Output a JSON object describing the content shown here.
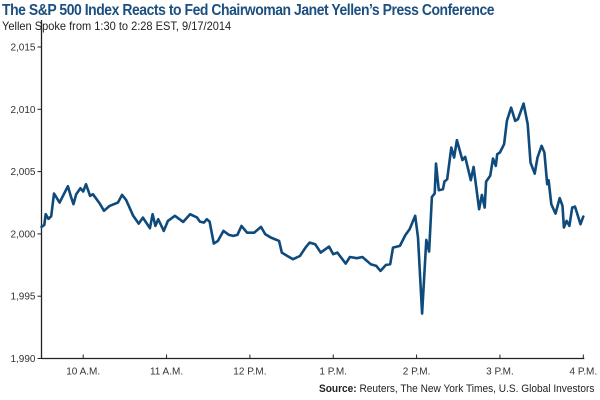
{
  "chart_data": {
    "type": "line",
    "title": "The S&P 500 Index Reacts to Fed Chairwoman Janet Yellen’s Press Conference",
    "subtitle": "Yellen Spoke from 1:30 to 2:28 EST, 9/17/2014",
    "source_label": "Source:",
    "source_text": "Reuters, The New York Times, U.S. Global Investors",
    "xlabel": "",
    "ylabel": "",
    "xlim": [
      "09:30",
      "16:00"
    ],
    "ylim": [
      1990,
      2015
    ],
    "yticks": [
      1990,
      1995,
      2000,
      2005,
      2010,
      2015
    ],
    "ytick_labels": [
      "1,990",
      "1,995",
      "2,000",
      "2,005",
      "2,010",
      "2,015"
    ],
    "xticks": [
      "10:00",
      "11:00",
      "12:00",
      "13:00",
      "14:00",
      "15:00",
      "16:00"
    ],
    "xtick_labels": [
      "10 A.M.",
      "11 A.M.",
      "12 P.M.",
      "1 P.M.",
      "2 P.M.",
      "3 P.M.",
      "4 P.M."
    ],
    "grid": false,
    "line_color": "#0f4a7c",
    "title_color": "#1b4f80",
    "points": [
      [
        "09:30",
        2000.56
      ],
      [
        "09:32",
        2000.72
      ],
      [
        "09:33",
        2001.58
      ],
      [
        "09:35",
        2001.2
      ],
      [
        "09:37",
        2001.42
      ],
      [
        "09:39",
        2003.24
      ],
      [
        "09:43",
        2002.51
      ],
      [
        "09:49",
        2003.83
      ],
      [
        "09:51",
        2003.05
      ],
      [
        "09:53",
        2002.38
      ],
      [
        "09:55",
        2003.19
      ],
      [
        "09:58",
        2003.67
      ],
      [
        "10:00",
        2003.4
      ],
      [
        "10:02",
        2003.99
      ],
      [
        "10:05",
        2003.05
      ],
      [
        "10:07",
        2003.19
      ],
      [
        "10:12",
        2002.43
      ],
      [
        "10:15",
        2001.85
      ],
      [
        "10:19",
        2002.25
      ],
      [
        "10:25",
        2002.51
      ],
      [
        "10:28",
        2003.13
      ],
      [
        "10:31",
        2002.71
      ],
      [
        "10:36",
        2001.45
      ],
      [
        "10:40",
        2000.83
      ],
      [
        "10:43",
        2001.31
      ],
      [
        "10:48",
        2000.46
      ],
      [
        "10:50",
        2001.58
      ],
      [
        "10:52",
        2000.64
      ],
      [
        "10:54",
        2001.18
      ],
      [
        "10:58",
        2000.24
      ],
      [
        "11:01",
        2001.04
      ],
      [
        "11:06",
        2001.45
      ],
      [
        "11:12",
        2000.96
      ],
      [
        "11:17",
        2001.58
      ],
      [
        "11:22",
        2001.31
      ],
      [
        "11:24",
        2000.99
      ],
      [
        "11:27",
        2000.91
      ],
      [
        "11:29",
        2001.18
      ],
      [
        "11:31",
        2000.99
      ],
      [
        "11:34",
        1999.22
      ],
      [
        "11:37",
        1999.44
      ],
      [
        "11:41",
        2000.24
      ],
      [
        "11:45",
        1999.92
      ],
      [
        "11:48",
        1999.84
      ],
      [
        "11:51",
        1999.92
      ],
      [
        "11:54",
        2000.64
      ],
      [
        "11:58",
        2000.1
      ],
      [
        "12:03",
        2000.1
      ],
      [
        "12:08",
        2000.56
      ],
      [
        "12:11",
        1999.98
      ],
      [
        "12:15",
        1999.71
      ],
      [
        "12:21",
        1999.44
      ],
      [
        "12:23",
        1998.5
      ],
      [
        "12:27",
        1998.23
      ],
      [
        "12:31",
        1997.97
      ],
      [
        "12:36",
        1998.23
      ],
      [
        "12:40",
        1998.9
      ],
      [
        "12:43",
        1999.3
      ],
      [
        "12:47",
        1999.17
      ],
      [
        "12:51",
        1998.5
      ],
      [
        "12:57",
        1998.98
      ],
      [
        "13:00",
        1998.37
      ],
      [
        "13:03",
        1998.5
      ],
      [
        "13:09",
        1997.62
      ],
      [
        "13:12",
        1998.15
      ],
      [
        "13:17",
        1998.05
      ],
      [
        "13:21",
        1998.15
      ],
      [
        "13:27",
        1997.57
      ],
      [
        "13:31",
        1997.43
      ],
      [
        "13:34",
        1997.03
      ],
      [
        "13:38",
        1997.51
      ],
      [
        "13:41",
        1997.57
      ],
      [
        "13:43",
        1998.9
      ],
      [
        "13:48",
        1999.04
      ],
      [
        "13:52",
        1999.92
      ],
      [
        "13:55",
        2000.38
      ],
      [
        "13:59",
        2001.45
      ],
      [
        "14:01",
        1999.71
      ],
      [
        "14:04",
        1993.6
      ],
      [
        "14:07",
        1999.52
      ],
      [
        "14:09",
        1998.58
      ],
      [
        "14:11",
        2002.97
      ],
      [
        "14:13",
        2003.24
      ],
      [
        "14:14",
        2005.65
      ],
      [
        "14:16",
        2003.51
      ],
      [
        "14:19",
        2003.59
      ],
      [
        "14:20",
        2004.2
      ],
      [
        "14:22",
        2004.39
      ],
      [
        "14:23",
        2005.2
      ],
      [
        "14:25",
        2006.93
      ],
      [
        "14:27",
        2006.13
      ],
      [
        "14:29",
        2007.52
      ],
      [
        "14:33",
        2005.92
      ],
      [
        "14:35",
        2006.18
      ],
      [
        "14:39",
        2004.31
      ],
      [
        "14:41",
        2005.38
      ],
      [
        "14:45",
        2001.98
      ],
      [
        "14:47",
        2003.13
      ],
      [
        "14:49",
        2002.11
      ],
      [
        "14:50",
        2004.2
      ],
      [
        "14:53",
        2004.66
      ],
      [
        "14:55",
        2006.05
      ],
      [
        "14:57",
        2005.46
      ],
      [
        "14:58",
        2006.4
      ],
      [
        "15:00",
        2006.53
      ],
      [
        "15:03",
        2007.2
      ],
      [
        "15:05",
        2009.07
      ],
      [
        "15:08",
        2010.14
      ],
      [
        "15:11",
        2009.07
      ],
      [
        "15:13",
        2009.21
      ],
      [
        "15:17",
        2010.46
      ],
      [
        "15:20",
        2008.81
      ],
      [
        "15:22",
        2005.73
      ],
      [
        "15:25",
        2004.84
      ],
      [
        "15:27",
        2006.13
      ],
      [
        "15:30",
        2007.07
      ],
      [
        "15:32",
        2006.53
      ],
      [
        "15:34",
        2003.99
      ],
      [
        "15:35",
        2004.31
      ],
      [
        "15:37",
        2002.38
      ],
      [
        "15:40",
        2001.63
      ],
      [
        "15:43",
        2002.87
      ],
      [
        "15:45",
        2002.25
      ],
      [
        "15:46",
        2000.51
      ],
      [
        "15:48",
        2001.04
      ],
      [
        "15:50",
        2000.64
      ],
      [
        "15:52",
        2002.11
      ],
      [
        "15:54",
        2002.19
      ],
      [
        "15:58",
        2000.78
      ],
      [
        "16:00",
        2001.39
      ]
    ]
  }
}
